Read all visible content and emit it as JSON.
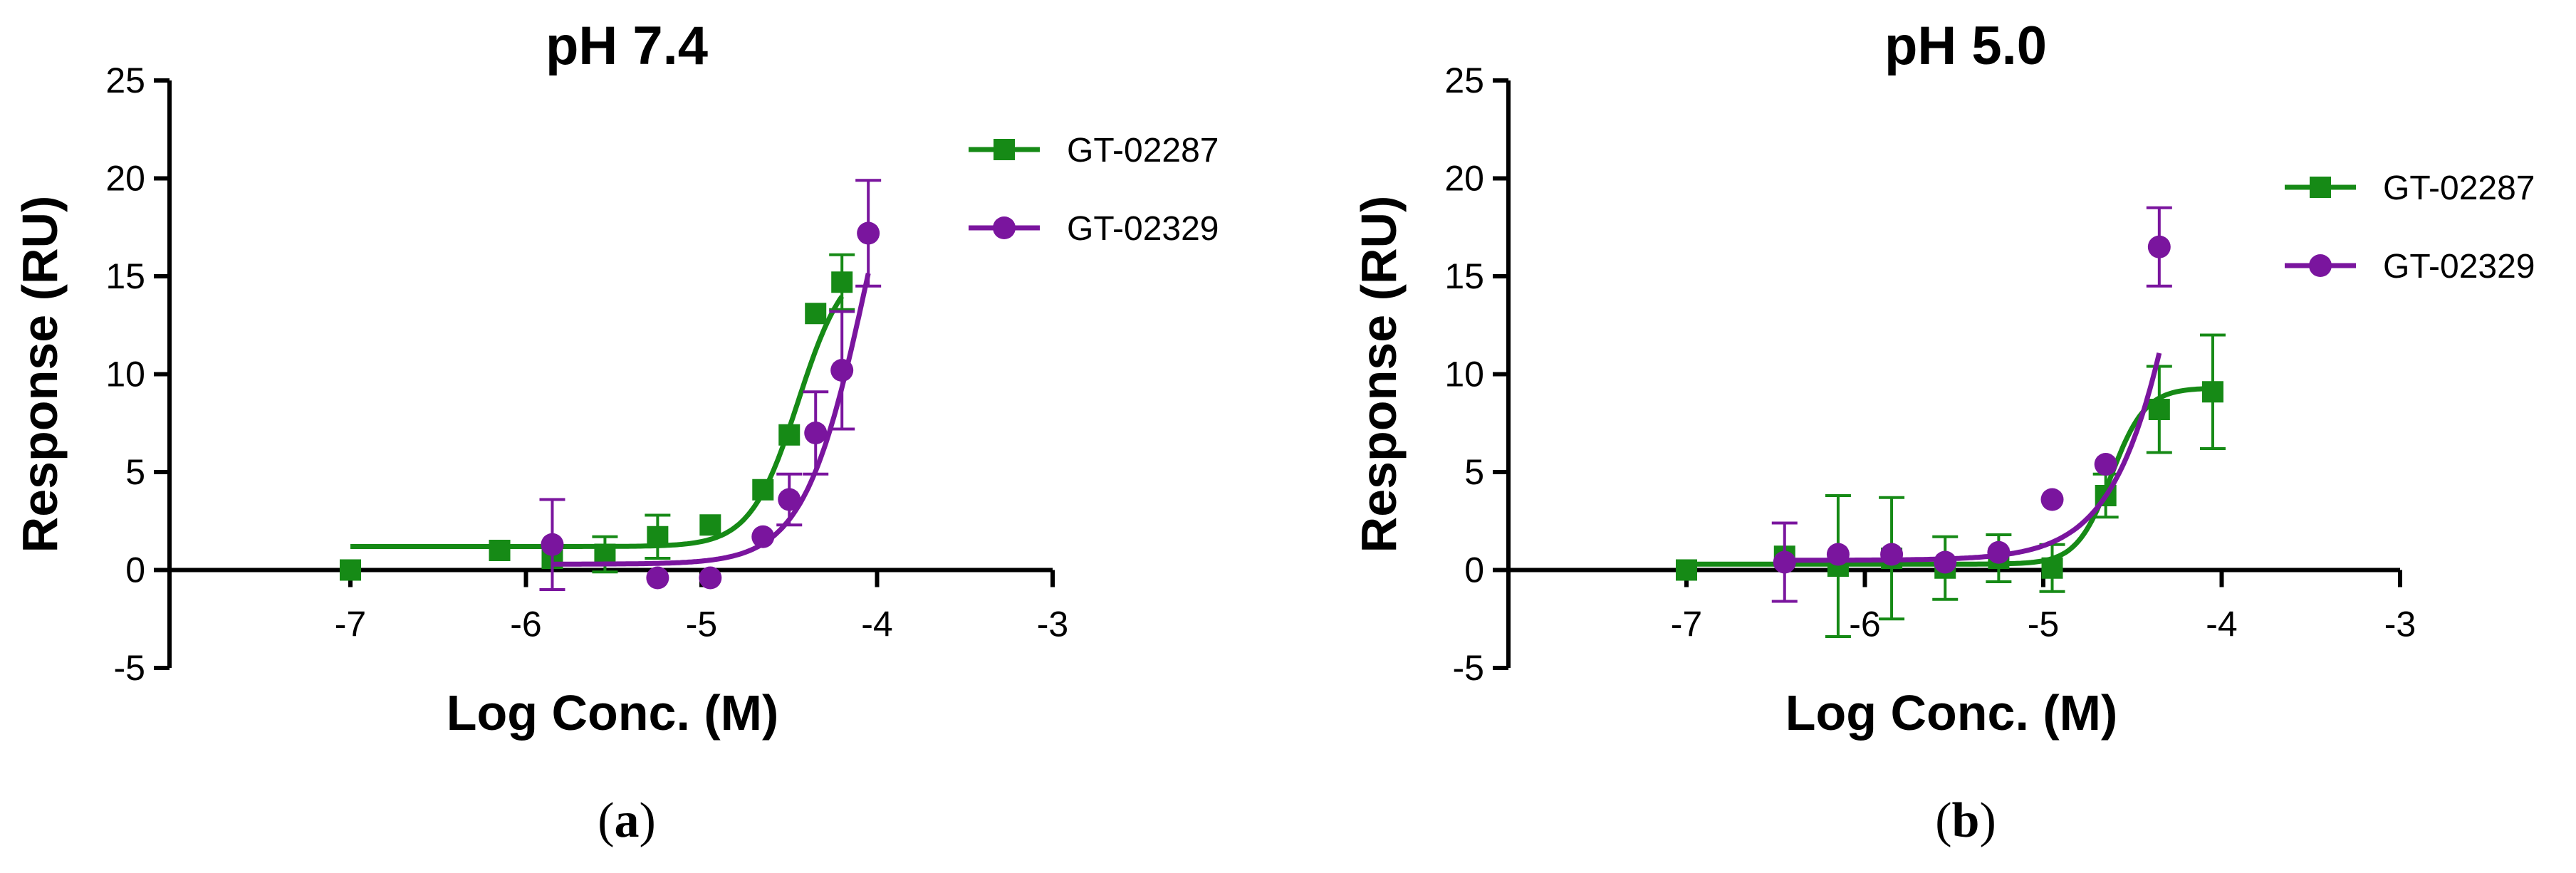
{
  "chart_data": [
    {
      "type": "scatter",
      "panel_label": "a",
      "title": "pH 7.4",
      "xlabel": "Log Conc. (M)",
      "ylabel": "Response (RU)",
      "xlim": [
        -7,
        -3
      ],
      "ylim": [
        -5,
        25
      ],
      "xticks": [
        -7,
        -6,
        -5,
        -4,
        -3
      ],
      "yticks": [
        -5,
        0,
        5,
        10,
        15,
        20,
        25
      ],
      "legend_position": "top-right",
      "series": [
        {
          "name": "GT-02287",
          "color": "#168a16",
          "marker": "square",
          "points": [
            {
              "x": -7.0,
              "y": 0.0,
              "err": 0
            },
            {
              "x": -6.15,
              "y": 1.0,
              "err": 0
            },
            {
              "x": -5.85,
              "y": 0.6,
              "err": 0
            },
            {
              "x": -5.55,
              "y": 0.8,
              "err": 0.9
            },
            {
              "x": -5.25,
              "y": 1.7,
              "err": 1.1
            },
            {
              "x": -4.95,
              "y": 2.3,
              "err": 0
            },
            {
              "x": -4.65,
              "y": 4.1,
              "err": 0
            },
            {
              "x": -4.5,
              "y": 6.9,
              "err": 0
            },
            {
              "x": -4.35,
              "y": 13.1,
              "err": 0
            },
            {
              "x": -4.2,
              "y": 14.7,
              "err": 1.4
            }
          ],
          "fit": {
            "bottom": 1.2,
            "top": 16.0,
            "logEC50": -4.45,
            "hill": 3.2
          }
        },
        {
          "name": "GT-02329",
          "color": "#7a159e",
          "marker": "circle",
          "points": [
            {
              "x": -5.85,
              "y": 1.3,
              "err": 2.3
            },
            {
              "x": -5.25,
              "y": -0.4,
              "err": 0
            },
            {
              "x": -4.95,
              "y": -0.4,
              "err": 0
            },
            {
              "x": -4.65,
              "y": 1.7,
              "err": 0
            },
            {
              "x": -4.5,
              "y": 3.6,
              "err": 1.3
            },
            {
              "x": -4.35,
              "y": 7.0,
              "err": 2.1
            },
            {
              "x": -4.2,
              "y": 10.2,
              "err": 3.0
            },
            {
              "x": -4.05,
              "y": 17.2,
              "err": 2.7
            }
          ],
          "fit": {
            "bottom": 0.3,
            "top": 30.0,
            "logEC50": -4.05,
            "hill": 2.4
          }
        }
      ]
    },
    {
      "type": "scatter",
      "panel_label": "b",
      "title": "pH 5.0",
      "xlabel": "Log Conc. (M)",
      "ylabel": "Response (RU)",
      "xlim": [
        -7,
        -3
      ],
      "ylim": [
        -5,
        25
      ],
      "xticks": [
        -7,
        -6,
        -5,
        -4,
        -3
      ],
      "yticks": [
        -5,
        0,
        5,
        10,
        15,
        20,
        25
      ],
      "legend_position": "top-right",
      "series": [
        {
          "name": "GT-02287",
          "color": "#168a16",
          "marker": "square",
          "points": [
            {
              "x": -7.0,
              "y": 0.0,
              "err": 0
            },
            {
              "x": -6.45,
              "y": 0.7,
              "err": 0
            },
            {
              "x": -6.15,
              "y": 0.2,
              "err": 3.6
            },
            {
              "x": -5.85,
              "y": 0.6,
              "err": 3.1
            },
            {
              "x": -5.55,
              "y": 0.1,
              "err": 1.6
            },
            {
              "x": -5.25,
              "y": 0.6,
              "err": 1.2
            },
            {
              "x": -4.95,
              "y": 0.1,
              "err": 1.2
            },
            {
              "x": -4.65,
              "y": 3.8,
              "err": 1.1
            },
            {
              "x": -4.35,
              "y": 8.2,
              "err": 2.2
            },
            {
              "x": -4.05,
              "y": 9.1,
              "err": 2.9
            }
          ],
          "fit": {
            "bottom": 0.3,
            "top": 9.3,
            "logEC50": -4.62,
            "hill": 4.5
          }
        },
        {
          "name": "GT-02329",
          "color": "#7a159e",
          "marker": "circle",
          "points": [
            {
              "x": -6.45,
              "y": 0.4,
              "err": 2.0
            },
            {
              "x": -6.15,
              "y": 0.8,
              "err": 0
            },
            {
              "x": -5.85,
              "y": 0.8,
              "err": 0
            },
            {
              "x": -5.55,
              "y": 0.4,
              "err": 0
            },
            {
              "x": -5.25,
              "y": 0.9,
              "err": 0
            },
            {
              "x": -4.95,
              "y": 3.6,
              "err": 0
            },
            {
              "x": -4.65,
              "y": 5.4,
              "err": 0
            },
            {
              "x": -4.35,
              "y": 16.5,
              "err": 2.0
            }
          ],
          "fit": {
            "bottom": 0.5,
            "top": 60.0,
            "logEC50": -4.0,
            "hill": 1.9
          }
        }
      ]
    }
  ]
}
